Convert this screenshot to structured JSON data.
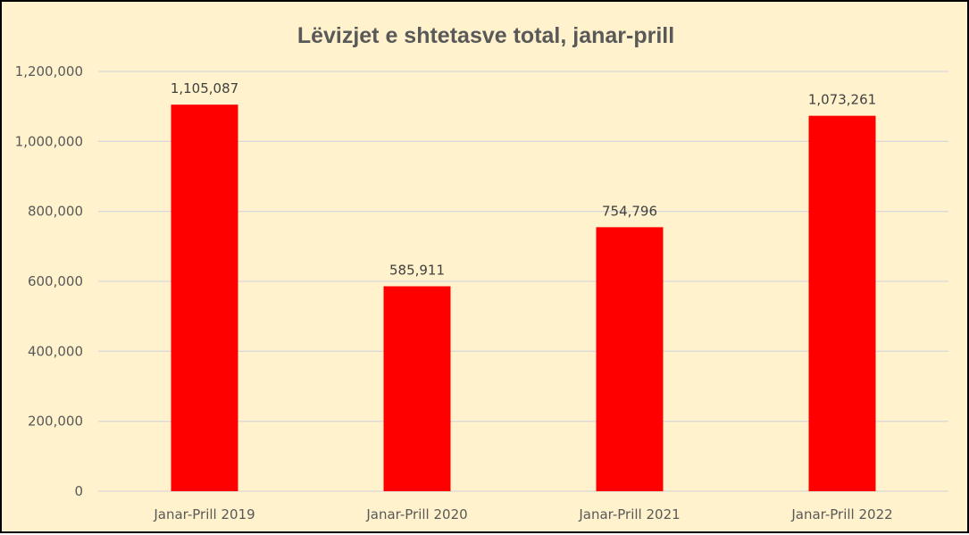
{
  "chart_data": {
    "type": "bar",
    "title": "Lëvizjet e shtetasve total, janar-prill",
    "categories": [
      "Janar-Prill 2019",
      "Janar-Prill 2020",
      "Janar-Prill 2021",
      "Janar-Prill 2022"
    ],
    "values": [
      1105087,
      585911,
      754796,
      1073261
    ],
    "data_labels": [
      "1,105,087",
      "585,911",
      "754,796",
      "1,073,261"
    ],
    "yticks": [
      0,
      200000,
      400000,
      600000,
      800000,
      1000000,
      1200000
    ],
    "ytick_labels": [
      "0",
      "200,000",
      "400,000",
      "600,000",
      "800,000",
      "1,000,000",
      "1,200,000"
    ],
    "ylim": [
      0,
      1200000
    ],
    "xlabel": "",
    "ylabel": "",
    "grid": true,
    "legend": "none"
  },
  "colors": {
    "background": "#FFF2CC",
    "bar": "#FF0000",
    "gridline": "#D9D9D9",
    "border": "#000000",
    "text": "#595959"
  }
}
